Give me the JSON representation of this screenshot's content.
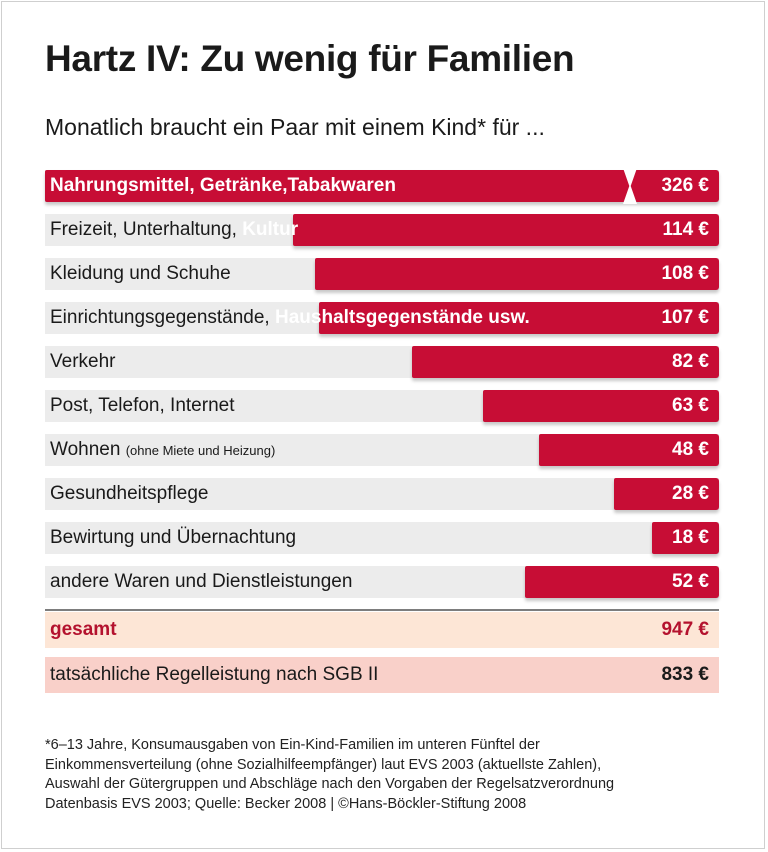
{
  "title": "Hartz IV: Zu wenig für Familien",
  "subtitle": "Monatlich braucht ein Paar mit einem Kind* für ...",
  "chart_data": {
    "type": "bar",
    "orientation": "horizontal",
    "unit": "€",
    "bar_color": "#c70d35",
    "categories": [
      "Nahrungsmittel, Getränke,Tabakwaren",
      "Freizeit, Unterhaltung, Kultur",
      "Kleidung und Schuhe",
      "Einrichtungsgegenstände, Haushaltsgegenstände usw.",
      "Verkehr",
      "Post, Telefon, Internet",
      "Wohnen (ohne Miete und Heizung)",
      "Gesundheitspflege",
      "Bewirtung und Übernachtung",
      "andere Waren und Dienstleistungen"
    ],
    "values": [
      326,
      114,
      108,
      107,
      82,
      63,
      48,
      28,
      18,
      52
    ],
    "axis_break_on_first_bar": true,
    "rows": [
      {
        "outside": "",
        "inside": "Nahrungsmittel, Getränke,Tabakwaren",
        "note": "",
        "value_label": "326 €"
      },
      {
        "outside": "Freizeit, Unterhaltung, ",
        "inside": "Kultur",
        "note": "",
        "value_label": "114 €"
      },
      {
        "outside": "Kleidung und Schuhe",
        "inside": "",
        "note": "",
        "value_label": "108 €"
      },
      {
        "outside": "Einrichtungsgegenstände, ",
        "inside": "Haushaltsgegenstände usw.",
        "note": "",
        "value_label": "107 €"
      },
      {
        "outside": "Verkehr",
        "inside": "",
        "note": "",
        "value_label": "82 €"
      },
      {
        "outside": "Post, Telefon, Internet",
        "inside": "",
        "note": "",
        "value_label": "63 €"
      },
      {
        "outside": "Wohnen ",
        "inside": "",
        "note": "(ohne Miete und Heizung)",
        "value_label": "48 €"
      },
      {
        "outside": "Gesundheitspflege",
        "inside": "",
        "note": "",
        "value_label": "28 €"
      },
      {
        "outside": "Bewirtung und Übernachtung",
        "inside": "",
        "note": "",
        "value_label": "18 €"
      },
      {
        "outside": "andere Waren und Dienstleistungen",
        "inside": "",
        "note": "",
        "value_label": "52 €"
      }
    ],
    "total": {
      "label": "gesamt",
      "value": 947,
      "value_label": "947 €",
      "color": "#b4122e",
      "background": "#fde6d6"
    },
    "benefit": {
      "label": "tatsächliche Regelleistung nach SGB II",
      "value": 833,
      "value_label": "833 €",
      "background": "#f9d0c9"
    }
  },
  "footnote": [
    "*6–13 Jahre, Konsumausgaben von Ein-Kind-Familien im unteren Fünftel der",
    "Einkommensverteilung (ohne Sozialhilfeempfänger) laut EVS 2003 (aktuellste Zahlen),",
    "Auswahl der Gütergruppen und Abschläge nach den Vorgaben der Regelsatzverordnung",
    "Datenbasis EVS 2003; Quelle: Becker 2008 | ©Hans-Böckler-Stiftung 2008"
  ]
}
